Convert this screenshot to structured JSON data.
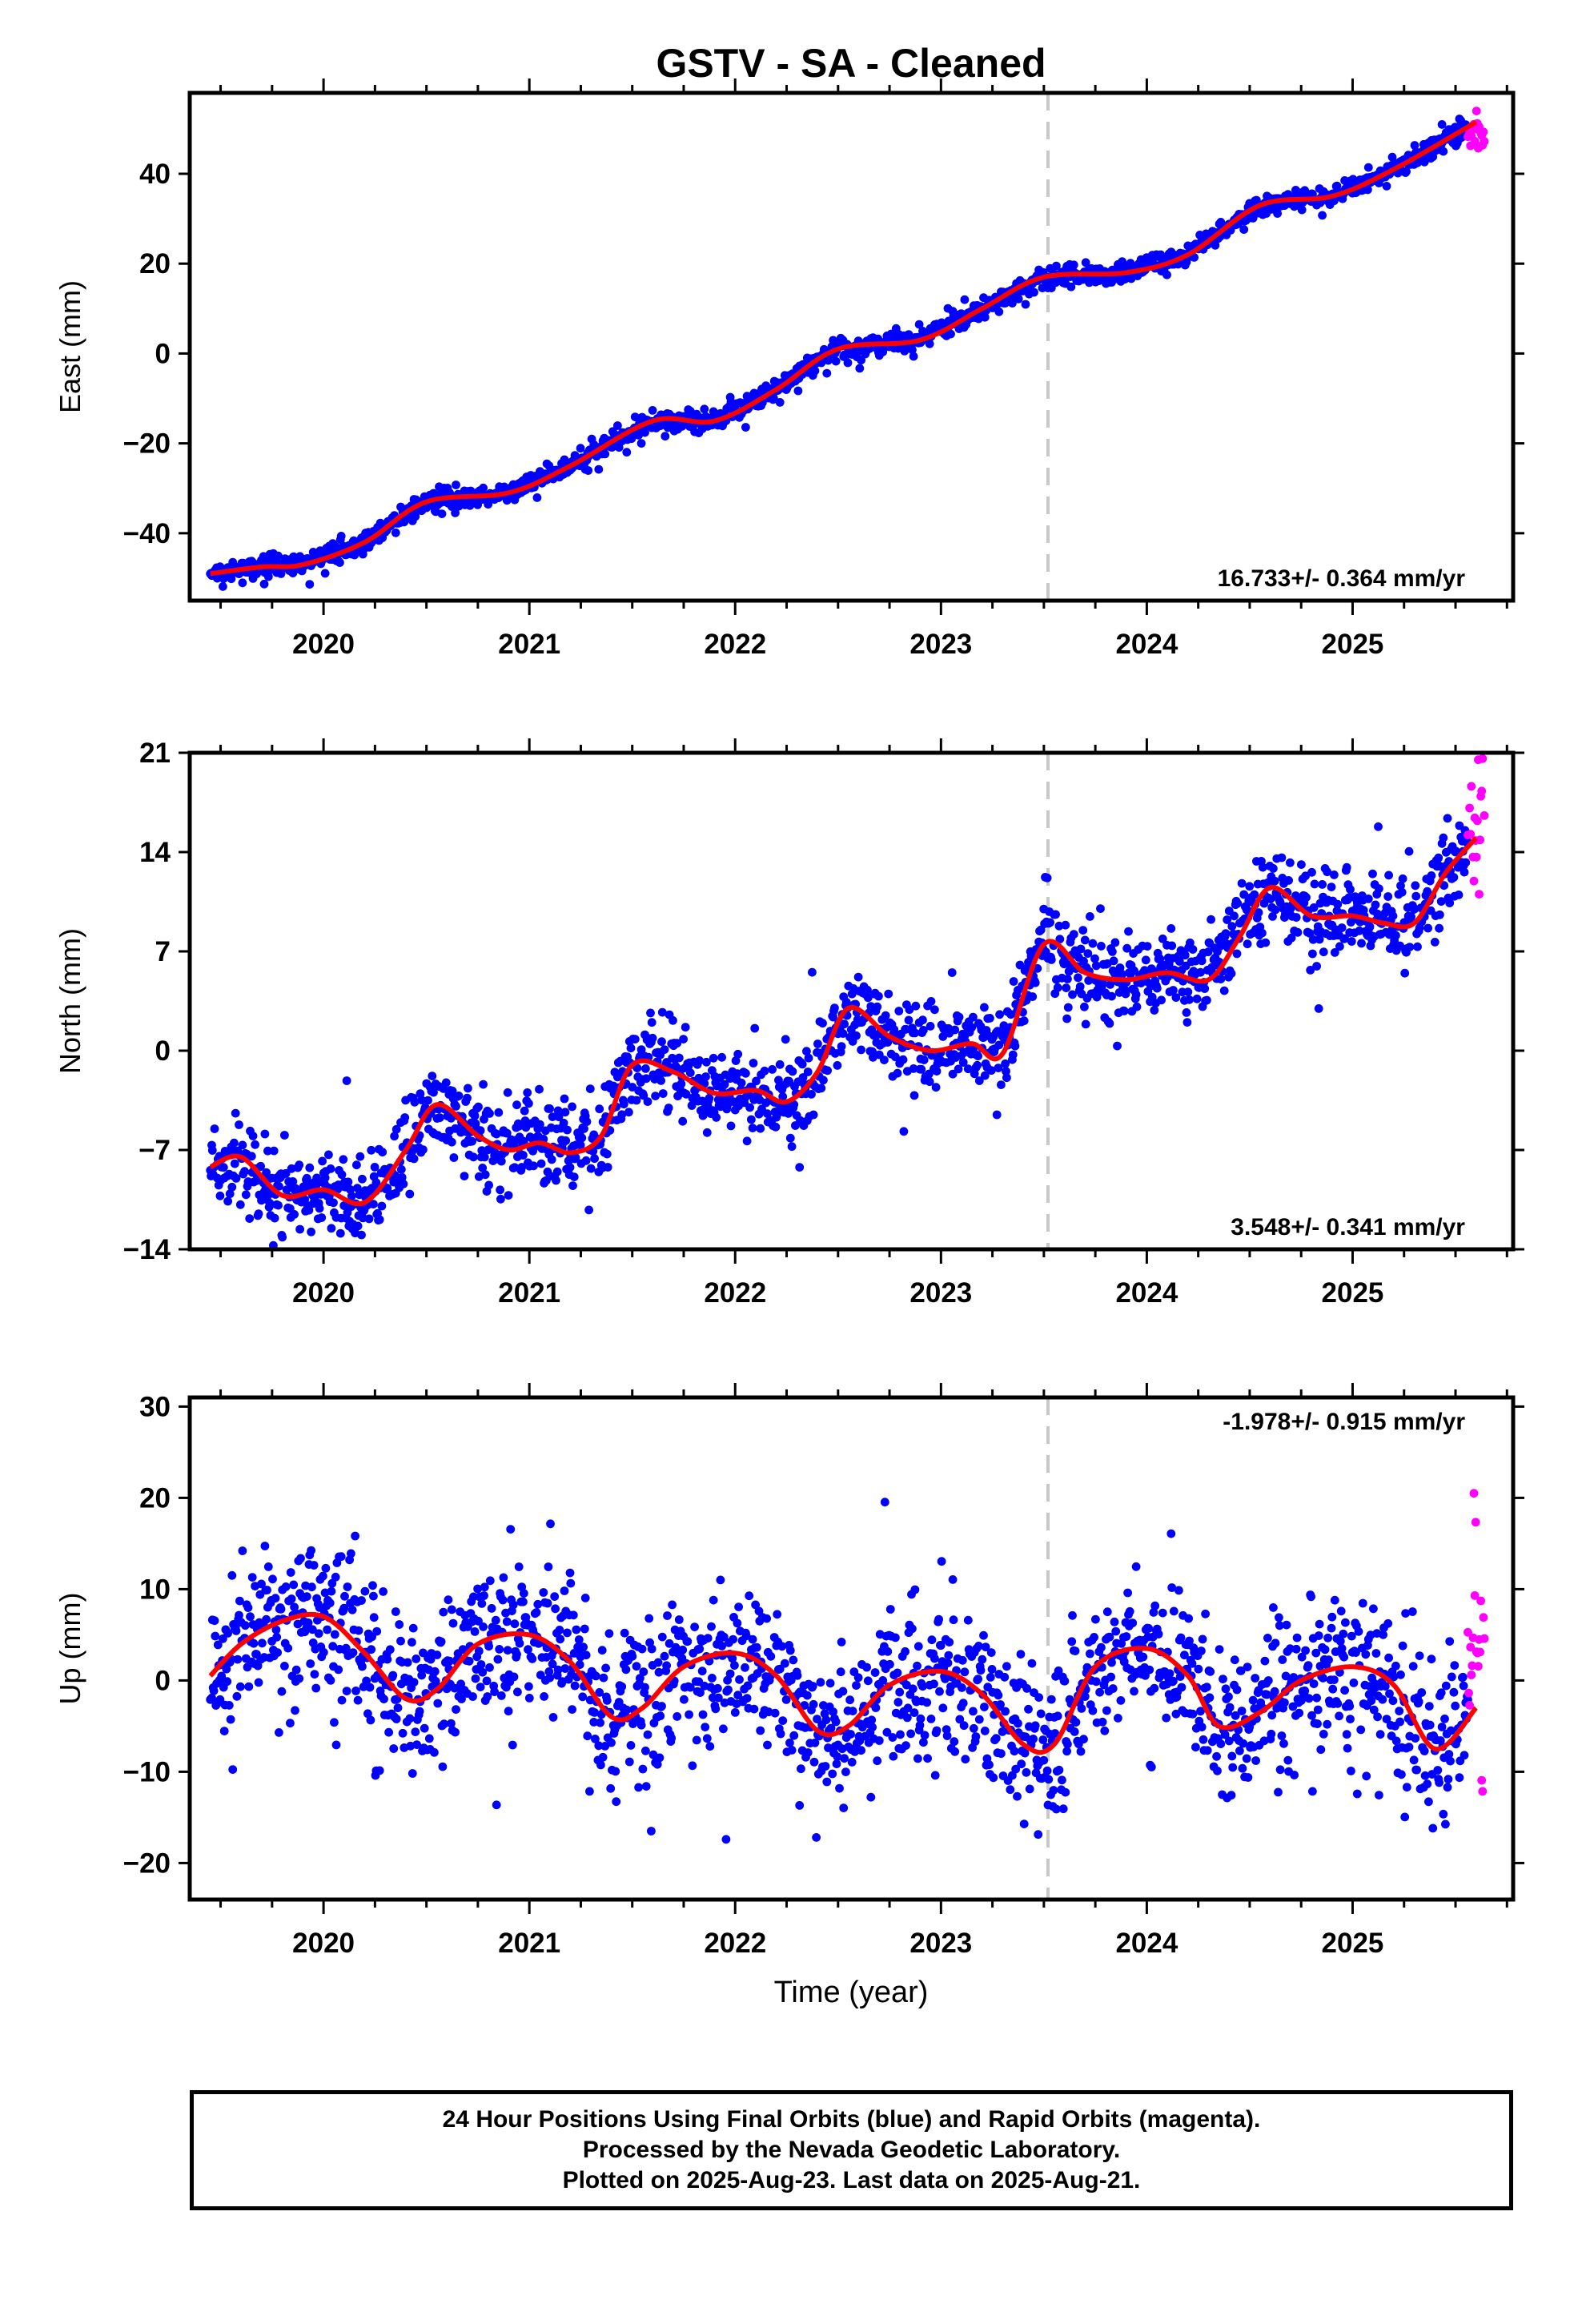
{
  "title": "GSTV  - SA - Cleaned",
  "x_axis_label": "Time (year)",
  "footer": {
    "line1": "24 Hour Positions Using Final Orbits (blue) and Rapid Orbits (magenta).",
    "line2": "Processed by the Nevada Geodetic Laboratory.",
    "line3": "Plotted on 2025-Aug-23. Last data on 2025-Aug-21."
  },
  "colors": {
    "final_orbits": "#0000ff",
    "rapid_orbits": "#ff00ff",
    "model_fit": "#ff0000",
    "event_line": "#c8c8c8"
  },
  "chart_data": [
    {
      "type": "scatter",
      "panel": "East",
      "ylabel": "East (mm)",
      "xlim": [
        2019.35,
        2025.78
      ],
      "ylim": [
        -55,
        58
      ],
      "yticks": [
        -40,
        -20,
        0,
        20,
        40
      ],
      "xticks": [
        2020,
        2021,
        2022,
        2023,
        2024,
        2025
      ],
      "grid": false,
      "event_line_x": 2023.52,
      "rate_label": "16.733+/- 0.364 mm/yr",
      "rate_label_position": "bottom-right",
      "trend": {
        "start_x": 2019.45,
        "start_y": -49,
        "rate_mm_per_yr": 16.733
      },
      "seasonal_amplitude": 1.6,
      "scatter_sd": 1.1,
      "final_end_x": 2025.56,
      "rapid_range_x": [
        2025.56,
        2025.64
      ],
      "model_fit": {
        "x": [
          2019.45,
          2019.7,
          2019.9,
          2020.2,
          2020.5,
          2020.9,
          2021.2,
          2021.6,
          2021.9,
          2022.2,
          2022.5,
          2022.9,
          2023.2,
          2023.5,
          2023.9,
          2024.2,
          2024.55,
          2024.9,
          2025.2,
          2025.6
        ],
        "y": [
          -49,
          -47.5,
          -47,
          -42,
          -33,
          -31,
          -25,
          -15,
          -15,
          -8,
          1,
          3,
          10,
          17,
          18,
          22,
          33,
          35,
          41,
          51.5
        ]
      }
    },
    {
      "type": "scatter",
      "panel": "North",
      "ylabel": "North (mm)",
      "xlim": [
        2019.35,
        2025.78
      ],
      "ylim": [
        -14,
        21
      ],
      "yticks": [
        -14,
        -7,
        0,
        7,
        14,
        21
      ],
      "xticks": [
        2020,
        2021,
        2022,
        2023,
        2024,
        2025
      ],
      "grid": false,
      "event_line_x": 2023.52,
      "rate_label": "3.548+/- 0.341 mm/yr",
      "rate_label_position": "bottom-right",
      "trend": {
        "start_x": 2019.45,
        "start_y": -10.2,
        "rate_mm_per_yr": 3.548
      },
      "seasonal_amplitude": 2.6,
      "scatter_sd": 1.5,
      "final_end_x": 2025.56,
      "rapid_range_x": [
        2025.56,
        2025.64
      ],
      "model_fit": {
        "x": [
          2019.45,
          2019.6,
          2019.8,
          2020.0,
          2020.2,
          2020.4,
          2020.55,
          2020.75,
          2020.9,
          2021.05,
          2021.2,
          2021.35,
          2021.5,
          2021.7,
          2021.9,
          2022.1,
          2022.25,
          2022.4,
          2022.55,
          2022.75,
          2022.95,
          2023.15,
          2023.3,
          2023.5,
          2023.7,
          2023.9,
          2024.1,
          2024.3,
          2024.45,
          2024.6,
          2024.8,
          2025.0,
          2025.15,
          2025.3,
          2025.45,
          2025.6
        ],
        "y": [
          -8.2,
          -7.5,
          -10.2,
          -9.8,
          -10.7,
          -7,
          -3.8,
          -6,
          -7,
          -6.5,
          -7.2,
          -6,
          -1,
          -1.5,
          -3,
          -2.8,
          -3.6,
          -1.5,
          3,
          1,
          0,
          0.5,
          -0.2,
          7.5,
          5.5,
          5,
          5.5,
          5,
          8,
          11.5,
          9.5,
          9.5,
          9,
          9,
          12.5,
          15
        ]
      }
    },
    {
      "type": "scatter",
      "panel": "Up",
      "ylabel": "Up (mm)",
      "xlim": [
        2019.35,
        2025.78
      ],
      "ylim": [
        -24,
        31
      ],
      "yticks": [
        -20,
        -10,
        0,
        10,
        20,
        30
      ],
      "xticks": [
        2020,
        2021,
        2022,
        2023,
        2024,
        2025
      ],
      "grid": false,
      "event_line_x": 2023.52,
      "rate_label": "-1.978+/- 0.915 mm/yr",
      "rate_label_position": "top-right",
      "trend": {
        "start_x": 2019.45,
        "start_y": 2.5,
        "rate_mm_per_yr": -1.978
      },
      "seasonal_amplitude": 5,
      "scatter_sd": 4.2,
      "final_end_x": 2025.56,
      "rapid_range_x": [
        2025.56,
        2025.64
      ],
      "model_fit": {
        "x": [
          2019.45,
          2019.6,
          2019.8,
          2020.0,
          2020.2,
          2020.4,
          2020.55,
          2020.75,
          2021.0,
          2021.2,
          2021.4,
          2021.55,
          2021.75,
          2022.0,
          2022.2,
          2022.4,
          2022.55,
          2022.75,
          2023.0,
          2023.2,
          2023.4,
          2023.55,
          2023.75,
          2024.0,
          2024.2,
          2024.35,
          2024.55,
          2024.75,
          2025.0,
          2025.2,
          2025.4,
          2025.6
        ],
        "y": [
          0.5,
          4,
          6.5,
          7,
          3,
          -2,
          -1,
          4,
          5,
          2,
          -4,
          -3,
          1.5,
          3,
          0.5,
          -5.5,
          -5,
          -0.5,
          1,
          -1.5,
          -7,
          -7,
          1.5,
          3.5,
          0.5,
          -5,
          -3.5,
          0,
          1.5,
          -0.5,
          -7.5,
          -3
        ]
      }
    }
  ]
}
